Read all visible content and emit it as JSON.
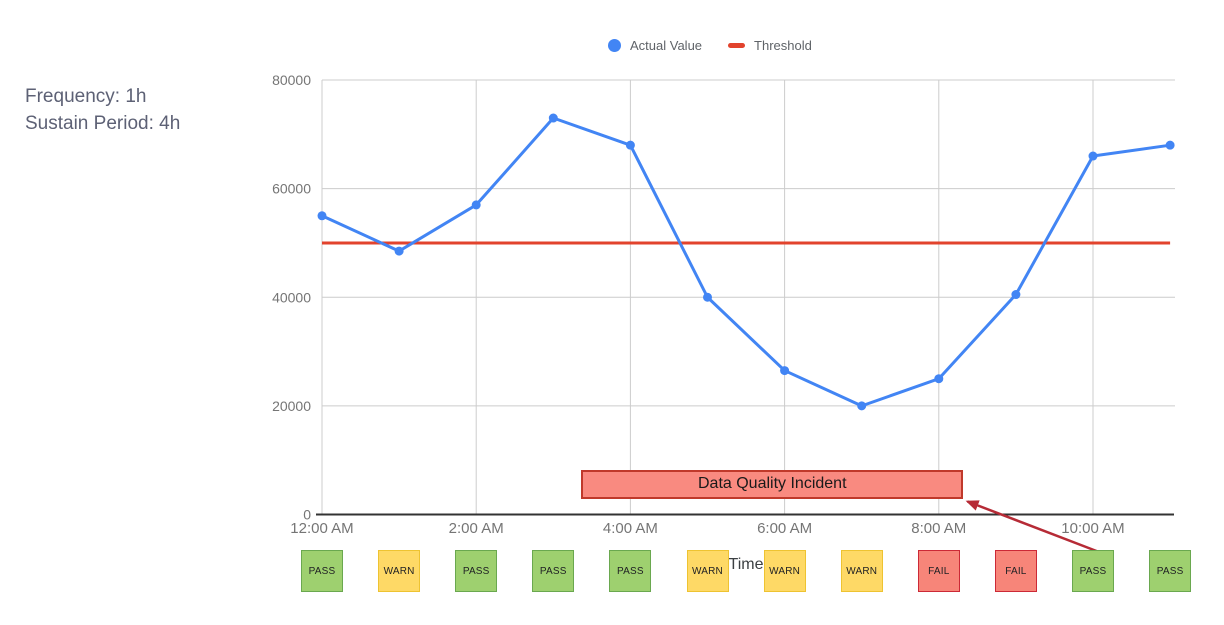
{
  "info": {
    "line1": "Frequency: 1h",
    "line2": "Sustain Period: 4h"
  },
  "legend": [
    {
      "label": "Actual Value",
      "color": "#4285f4",
      "shape": "circle"
    },
    {
      "label": "Threshold",
      "color": "#e2432d",
      "shape": "dash"
    }
  ],
  "chart_data": {
    "type": "line",
    "title": "",
    "x": [
      "12:00 AM",
      "1:00 AM",
      "2:00 AM",
      "3:00 AM",
      "4:00 AM",
      "5:00 AM",
      "6:00 AM",
      "7:00 AM",
      "8:00 AM",
      "9:00 AM",
      "10:00 AM",
      "11:00 AM"
    ],
    "series": [
      {
        "name": "Actual Value",
        "color": "#4285f4",
        "values": [
          55000,
          48500,
          57000,
          73000,
          68000,
          40000,
          26500,
          20000,
          25000,
          40500,
          66000,
          68000
        ]
      }
    ],
    "threshold": {
      "name": "Threshold",
      "value": 50000,
      "color": "#e2432d"
    },
    "ylim": [
      0,
      80000
    ],
    "yticks": [
      0,
      20000,
      40000,
      60000,
      80000
    ],
    "xticks_shown": [
      "12:00 AM",
      "2:00 AM",
      "4:00 AM",
      "6:00 AM",
      "8:00 AM",
      "10:00 AM"
    ],
    "xlabel": "Time",
    "ylabel": "",
    "grid": true,
    "legend_position": "top-center",
    "grid_color": "#cccccc",
    "axis_color": "#333333",
    "annotation": {
      "label": "Data Quality Incident",
      "hour_start": 3.36,
      "hour_end": 8.32,
      "fill": "#f98a80",
      "border": "#c0392b",
      "arrow_color": "#b62b36",
      "arrow_from_hour": 10
    }
  },
  "statuses": {
    "values": [
      "PASS",
      "WARN",
      "PASS",
      "PASS",
      "PASS",
      "WARN",
      "WARN",
      "WARN",
      "FAIL",
      "FAIL",
      "PASS",
      "PASS"
    ],
    "colors": {
      "PASS": {
        "fill": "#9ed06f",
        "border": "#6aa84f"
      },
      "WARN": {
        "fill": "#fed966",
        "border": "#eec331"
      },
      "FAIL": {
        "fill": "#f78579",
        "border": "#cc2936"
      }
    }
  }
}
